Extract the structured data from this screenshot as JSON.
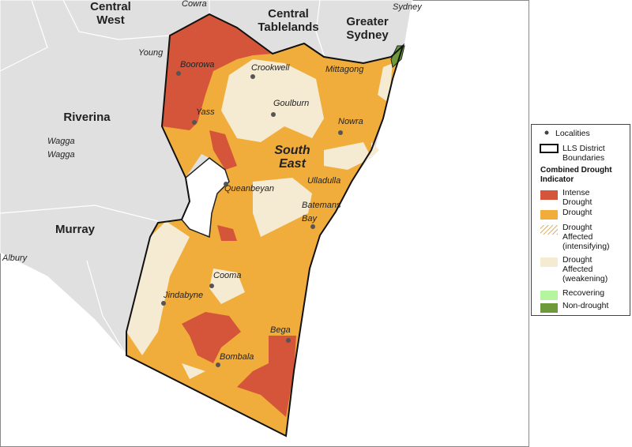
{
  "map": {
    "regions": [
      "Central West",
      "Central Tablelands",
      "Greater Sydney",
      "Riverina",
      "Murray",
      "South East"
    ],
    "localities": [
      "Cowra",
      "Sydney",
      "Young",
      "Boorowa",
      "Crookwell",
      "Mittagong",
      "Goulburn",
      "Yass",
      "Nowra",
      "Wagga Wagga",
      "Queanbeyan",
      "Ulladulla",
      "Batemans Bay",
      "Cooma",
      "Jindabyne",
      "Bega",
      "Bombala",
      "Albury"
    ]
  },
  "legend": {
    "localities": "Localities",
    "boundaries": "LLS District Boundaries",
    "title": "Combined Drought Indicator",
    "items": [
      "Intense Drought",
      "Drought",
      "Drought Affected (intensifying)",
      "Drought Affected (weakening)",
      "Recovering",
      "Non-drought"
    ]
  }
}
